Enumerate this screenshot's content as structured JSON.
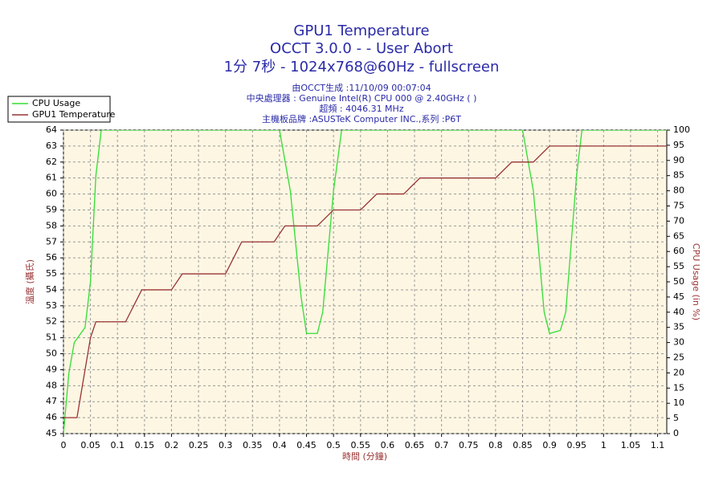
{
  "chart_data": {
    "type": "line",
    "title": [
      "GPU1 Temperature",
      "OCCT 3.0.0 -  - User Abort",
      "1分 7秒 - 1024x768@60Hz - fullscreen"
    ],
    "subtitle": [
      "由OCCT生成 :11/10/09 00:07:04",
      "中央處理器 : Genuine Intel(R) CPU 000 @ 2.40GHz (  )",
      "超頻 : 4046.31 MHz",
      "主機板品牌 :ASUSTeK Computer INC.,系列 :P6T"
    ],
    "xlabel": "時間 (分鐘)",
    "ylabel": "溫度 (攝氏)",
    "y2label": "CPU Usage (in %)",
    "xlim": [
      0,
      1.117
    ],
    "xticks": [
      0,
      0.05,
      0.1,
      0.15,
      0.2,
      0.25,
      0.3,
      0.35,
      0.4,
      0.45,
      0.5,
      0.55,
      0.6,
      0.65,
      0.7,
      0.75,
      0.8,
      0.85,
      0.9,
      0.95,
      1,
      1.05,
      1.1
    ],
    "ylim": [
      45,
      64
    ],
    "yticks": [
      45,
      46,
      47,
      48,
      49,
      50,
      51,
      52,
      53,
      54,
      55,
      56,
      57,
      58,
      59,
      60,
      61,
      62,
      63,
      64
    ],
    "y2lim": [
      0,
      100
    ],
    "y2ticks": [
      0,
      5,
      10,
      15,
      20,
      25,
      30,
      35,
      40,
      45,
      50,
      55,
      60,
      65,
      70,
      75,
      80,
      85,
      90,
      95,
      100
    ],
    "grid": true,
    "legend": "top-left",
    "series": [
      {
        "name": "CPU Usage",
        "color": "#33dd33",
        "axis": "y2",
        "x": [
          0,
          0.01,
          0.02,
          0.04,
          0.05,
          0.06,
          0.07,
          0.4,
          0.42,
          0.44,
          0.45,
          0.47,
          0.48,
          0.5,
          0.515,
          0.85,
          0.87,
          0.89,
          0.9,
          0.92,
          0.93,
          0.95,
          0.96,
          1.117
        ],
        "values": [
          0,
          20,
          30,
          35,
          50,
          85,
          100,
          100,
          80,
          45,
          33,
          33,
          40,
          80,
          100,
          100,
          80,
          40,
          33,
          34,
          40,
          85,
          100,
          100
        ]
      },
      {
        "name": "GPU1 Temperature",
        "color": "#993333",
        "axis": "y",
        "x": [
          0,
          0.025,
          0.05,
          0.06,
          0.115,
          0.13,
          0.145,
          0.2,
          0.22,
          0.3,
          0.33,
          0.39,
          0.41,
          0.47,
          0.5,
          0.55,
          0.58,
          0.63,
          0.66,
          0.8,
          0.83,
          0.87,
          0.9,
          1.117
        ],
        "values": [
          46,
          46,
          51,
          52,
          52,
          53,
          54,
          54,
          55,
          55,
          57,
          57,
          58,
          58,
          59,
          59,
          60,
          60,
          61,
          61,
          62,
          62,
          63,
          63
        ]
      }
    ]
  }
}
